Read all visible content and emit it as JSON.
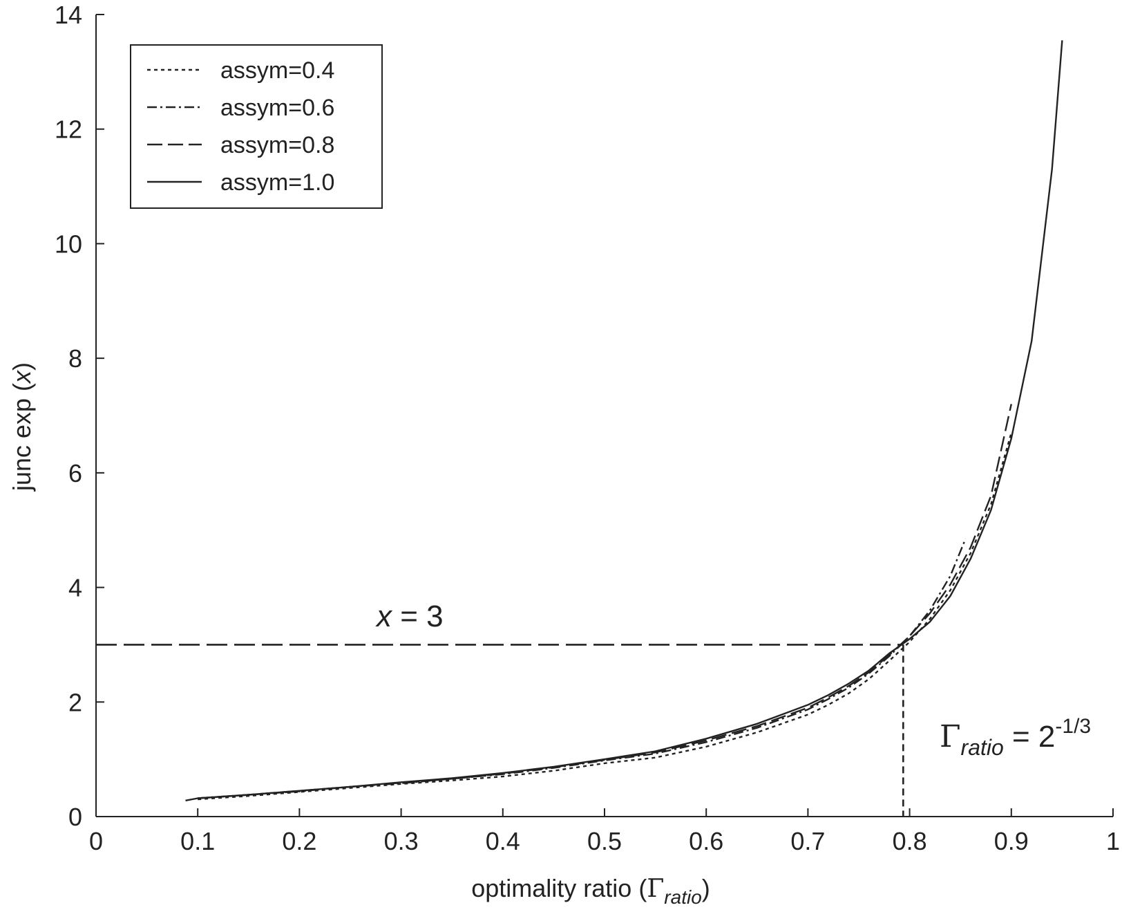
{
  "chart_data": {
    "type": "line",
    "title": "",
    "xlabel": "optimality ratio (",
    "xlabel_symbol": "Γ",
    "xlabel_sub": "ratio",
    "xlabel_close": ")",
    "ylabel": "junc exp (",
    "ylabel_var": "x",
    "ylabel_close": ")",
    "xlim": [
      0,
      1
    ],
    "ylim": [
      0,
      14
    ],
    "xticks": [
      0,
      0.1,
      0.2,
      0.3,
      0.4,
      0.5,
      0.6,
      0.7,
      0.8,
      0.9,
      1
    ],
    "xtick_labels": [
      "0",
      "0.1",
      "0.2",
      "0.3",
      "0.4",
      "0.5",
      "0.6",
      "0.7",
      "0.8",
      "0.9",
      "1"
    ],
    "yticks": [
      0,
      2,
      4,
      6,
      8,
      10,
      12,
      14
    ],
    "ytick_labels": [
      "0",
      "2",
      "4",
      "6",
      "8",
      "10",
      "12",
      "14"
    ],
    "grid": false,
    "legend_position": "top-left",
    "series": [
      {
        "name": "assym=0.4",
        "dash": "dotted",
        "x": [
          0.1,
          0.15,
          0.2,
          0.25,
          0.3,
          0.35,
          0.4,
          0.45,
          0.5,
          0.55,
          0.6,
          0.65,
          0.7,
          0.72,
          0.74,
          0.76,
          0.78,
          0.8,
          0.82,
          0.84,
          0.86,
          0.88,
          0.9
        ],
        "y": [
          0.3,
          0.36,
          0.43,
          0.5,
          0.57,
          0.63,
          0.7,
          0.8,
          0.93,
          1.03,
          1.22,
          1.47,
          1.78,
          1.95,
          2.15,
          2.4,
          2.72,
          3.05,
          3.45,
          3.95,
          4.6,
          5.45,
          6.7
        ]
      },
      {
        "name": "assym=0.6",
        "dash": "dashdot",
        "x": [
          0.1,
          0.15,
          0.2,
          0.25,
          0.3,
          0.35,
          0.4,
          0.45,
          0.5,
          0.55,
          0.6,
          0.65,
          0.7,
          0.72,
          0.74,
          0.76,
          0.78,
          0.8,
          0.82,
          0.84,
          0.855
        ],
        "y": [
          0.32,
          0.38,
          0.44,
          0.52,
          0.58,
          0.66,
          0.74,
          0.85,
          0.98,
          1.1,
          1.3,
          1.55,
          1.87,
          2.05,
          2.25,
          2.5,
          2.8,
          3.15,
          3.6,
          4.2,
          4.85
        ]
      },
      {
        "name": "assym=0.8",
        "dash": "longdash",
        "x": [
          0.1,
          0.15,
          0.2,
          0.25,
          0.3,
          0.35,
          0.4,
          0.45,
          0.5,
          0.55,
          0.6,
          0.65,
          0.7,
          0.72,
          0.74,
          0.76,
          0.78,
          0.8,
          0.82,
          0.84,
          0.86,
          0.88,
          0.9
        ],
        "y": [
          0.32,
          0.38,
          0.45,
          0.52,
          0.59,
          0.66,
          0.75,
          0.86,
          0.99,
          1.12,
          1.33,
          1.58,
          1.9,
          2.08,
          2.28,
          2.52,
          2.82,
          3.15,
          3.55,
          4.05,
          4.7,
          5.6,
          7.2
        ]
      },
      {
        "name": "assym=1.0",
        "dash": "solid",
        "x": [
          0.088,
          0.1,
          0.15,
          0.2,
          0.25,
          0.3,
          0.35,
          0.4,
          0.45,
          0.5,
          0.55,
          0.6,
          0.65,
          0.7,
          0.72,
          0.74,
          0.76,
          0.78,
          0.8,
          0.82,
          0.84,
          0.86,
          0.88,
          0.9,
          0.92,
          0.94,
          0.95
        ],
        "y": [
          0.28,
          0.32,
          0.38,
          0.45,
          0.52,
          0.6,
          0.67,
          0.76,
          0.87,
          1.0,
          1.14,
          1.36,
          1.62,
          1.95,
          2.12,
          2.32,
          2.55,
          2.85,
          3.1,
          3.4,
          3.85,
          4.5,
          5.35,
          6.6,
          8.3,
          11.3,
          13.55
        ]
      }
    ],
    "reference_lines": {
      "horizontal_y": 3,
      "vertical_x": 0.7937
    },
    "annotations": {
      "x_eq_var": "x",
      "x_eq_rest": " = 3",
      "gamma_symbol": "Γ",
      "gamma_sub": "ratio",
      "gamma_eq": " = 2",
      "gamma_sup": "-1/3"
    }
  }
}
